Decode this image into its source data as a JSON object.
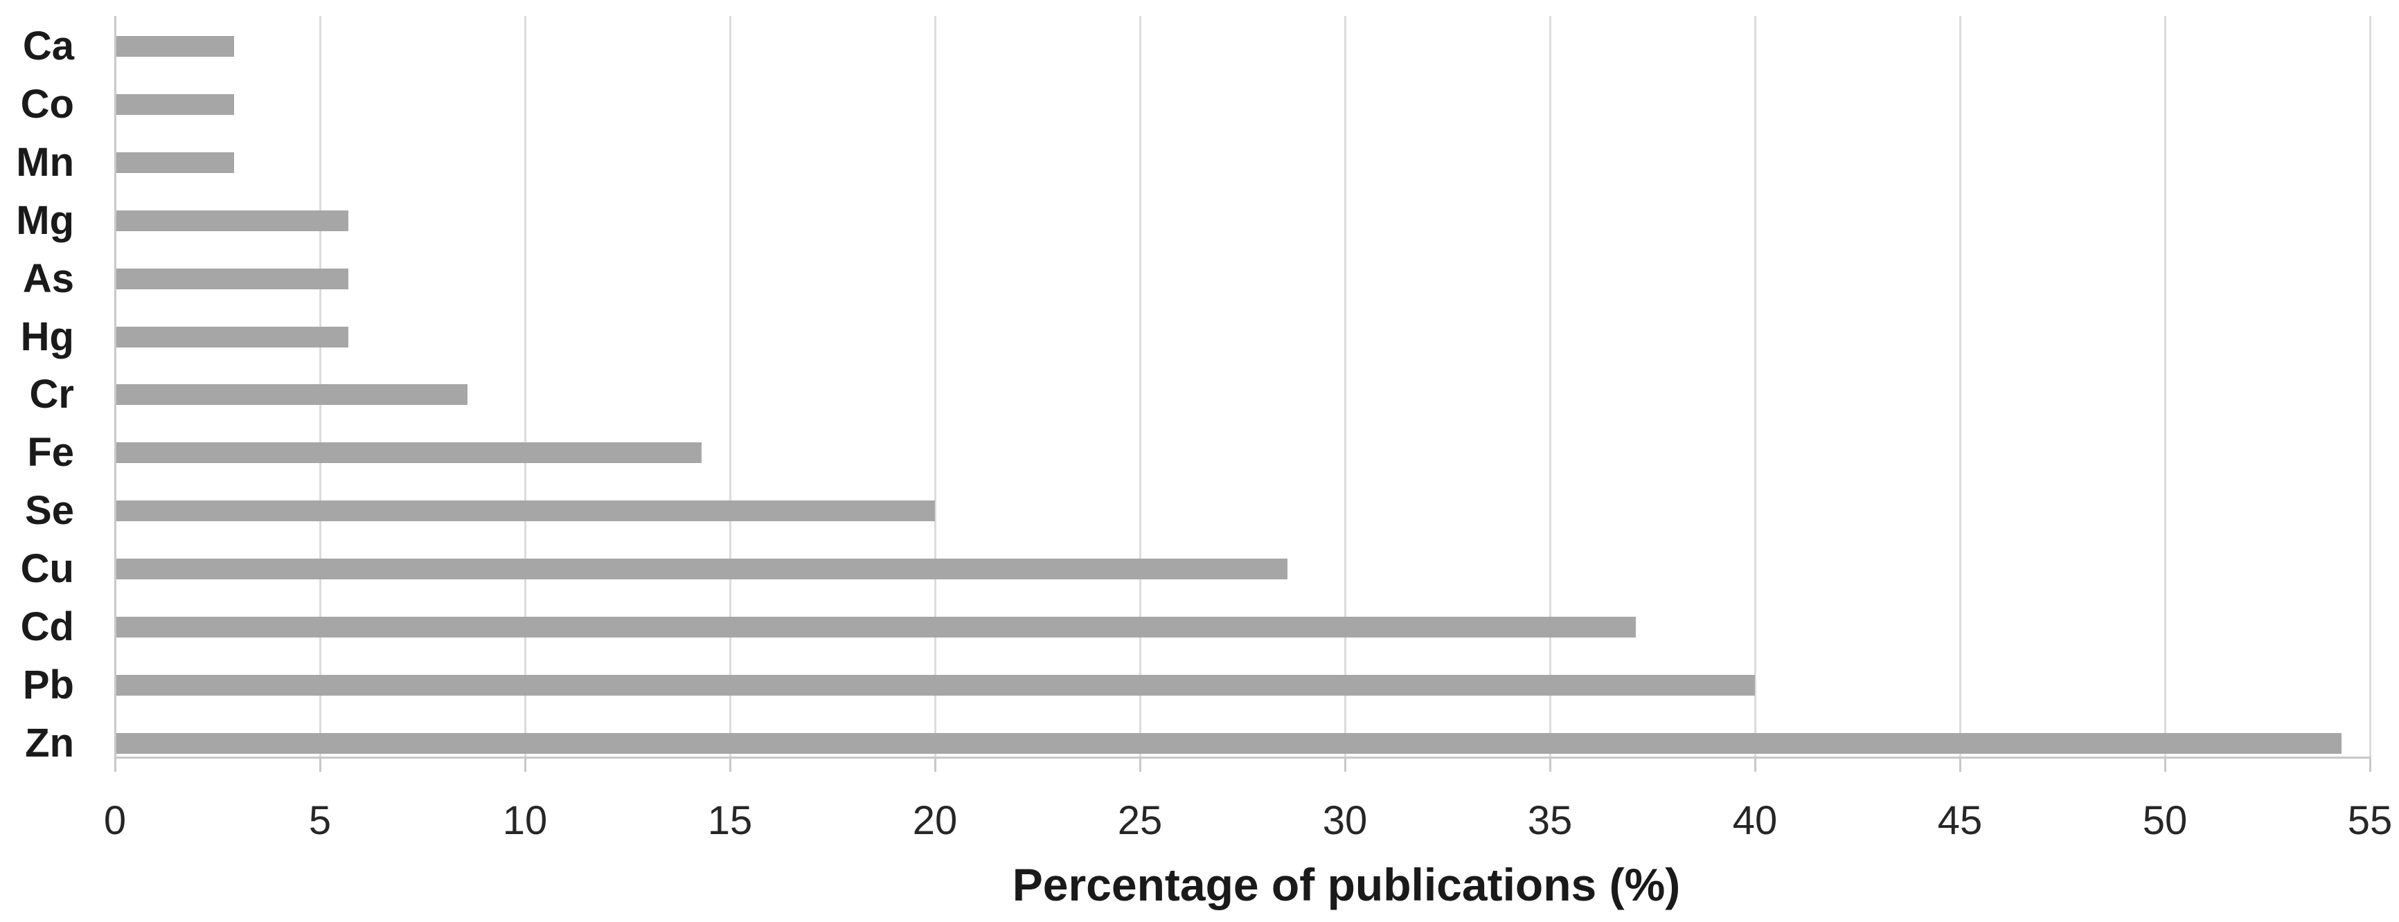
{
  "chart_data": {
    "type": "bar",
    "orientation": "horizontal",
    "title": "",
    "xlabel": "Percentage of publications (%)",
    "ylabel": "",
    "categories": [
      "Ca",
      "Co",
      "Mn",
      "Mg",
      "As",
      "Hg",
      "Cr",
      "Fe",
      "Se",
      "Cu",
      "Cd",
      "Pb",
      "Zn"
    ],
    "values": [
      2.9,
      2.9,
      2.9,
      5.7,
      5.7,
      5.7,
      8.6,
      14.3,
      20.0,
      28.6,
      37.1,
      40.0,
      54.3
    ],
    "xlim": [
      0,
      55
    ],
    "xticks": [
      0,
      5,
      10,
      15,
      20,
      25,
      30,
      35,
      40,
      45,
      50,
      55
    ],
    "grid": true,
    "legend": false,
    "colors": {
      "bar_fill": "#a6a6a6",
      "gridline": "#dcdcdc",
      "axis_line": "#c8c8c8",
      "text": "#1a1a1a"
    }
  }
}
